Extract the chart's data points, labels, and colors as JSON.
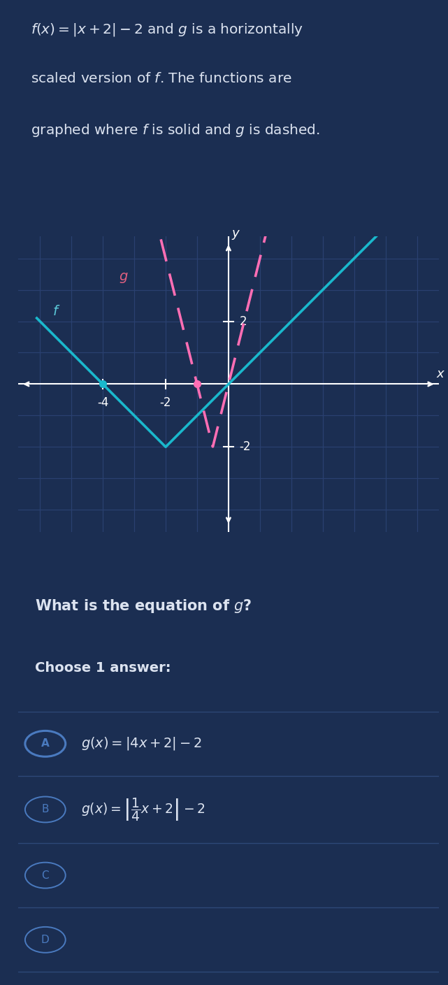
{
  "bg_color": "#1b2e52",
  "graph_bg_color": "#1a2d50",
  "grid_color": "#2a4070",
  "axis_color": "#ffffff",
  "f_color": "#1ab8cc",
  "g_color": "#ff6eb4",
  "f_label_color": "#5bc8d8",
  "g_label_color": "#e06080",
  "title_color": "#dce3f0",
  "question_color": "#dce3f0",
  "choose_color": "#dce3f0",
  "option_color": "#dce3f0",
  "circle_color": "#4a7abf",
  "selected_circle_color": "#4a7abf",
  "dot_color_f": "#1ab8cc",
  "dot_color_g": "#ff6eb4",
  "xmin": -6,
  "xmax": 6,
  "ymin": -4,
  "ymax": 4,
  "xtick_labels": [
    -4,
    -2
  ],
  "ytick_labels_pos": [
    2
  ],
  "ytick_labels_neg": [
    -2
  ],
  "divider_color": "#2e4878",
  "title_text_line1": "f(x) = |x + 2| - 2 and g is a horizontally",
  "title_text_line2": "scaled version of f. The functions are",
  "title_text_line3": "graphed where f is solid and g is dashed.",
  "question_text": "What is the equation of g?",
  "choose_text": "Choose 1 answer:"
}
